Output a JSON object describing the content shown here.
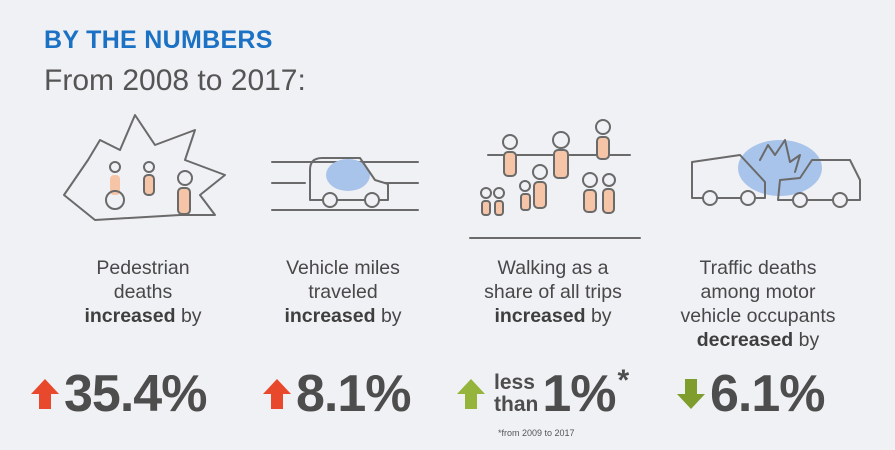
{
  "header": {
    "title": "BY THE NUMBERS",
    "subtitle": "From 2008 to 2017:"
  },
  "stats": [
    {
      "lines": [
        "Pedestrian",
        "deaths"
      ],
      "emphasis": "increased",
      "suffix": "by",
      "value": "35.4%",
      "arrow": "up",
      "arrow_color": "#e8482c"
    },
    {
      "lines": [
        "Vehicle miles",
        "traveled"
      ],
      "emphasis": "increased",
      "suffix": "by",
      "value": "8.1%",
      "arrow": "up",
      "arrow_color": "#e8482c"
    },
    {
      "lines": [
        "Walking as a",
        "share of all trips"
      ],
      "emphasis": "increased",
      "suffix": "by",
      "prefix_lines": [
        "less",
        "than"
      ],
      "value": "1%",
      "marker": "*",
      "arrow": "up",
      "arrow_color": "#95b43c"
    },
    {
      "lines": [
        "Traffic deaths",
        "among motor",
        "vehicle occupants"
      ],
      "emphasis": "decreased",
      "suffix": "by",
      "value": "6.1%",
      "arrow": "down",
      "arrow_color": "#7f9d2c"
    }
  ],
  "footnote": "*from 2009 to 2017"
}
